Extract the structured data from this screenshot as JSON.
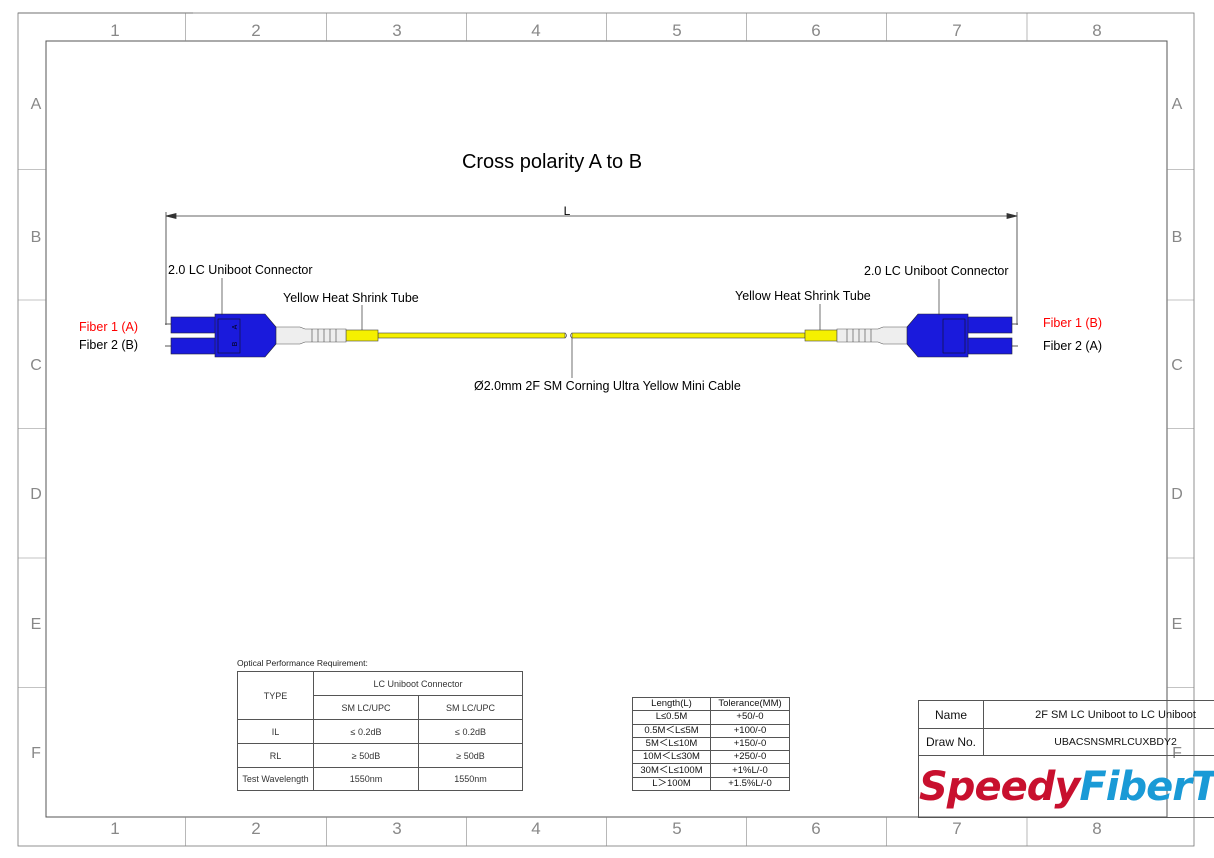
{
  "grid": {
    "columns": [
      "1",
      "2",
      "3",
      "4",
      "5",
      "6",
      "7",
      "8"
    ],
    "rows": [
      "A",
      "B",
      "C",
      "D",
      "E",
      "F"
    ]
  },
  "title": "Cross polarity A to B",
  "dimension_label": "L",
  "labels": {
    "left_connector": "2.0 LC Uniboot Connector",
    "right_connector": "2.0 LC Uniboot Connector",
    "left_heat_shrink": "Yellow Heat Shrink Tube",
    "right_heat_shrink": "Yellow Heat Shrink Tube",
    "cable": "Ø2.0mm 2F SM Corning Ultra Yellow Mini Cable",
    "left_fiber1": "Fiber 1 (A)",
    "left_fiber2": "Fiber 2 (B)",
    "right_fiber1": "Fiber 1 (B)",
    "right_fiber2": "Fiber 2 (A)",
    "connector_marks": [
      "A",
      "B"
    ]
  },
  "colors": {
    "connector": "#1a1adc",
    "cable": "#f5f000",
    "boot": "#e8e8e8",
    "fiber1_label": "#ff0000",
    "logo_red": "#c8102e",
    "logo_blue": "#1a9ad6"
  },
  "optical": {
    "caption": "Optical Performance Requirement:",
    "type_header": "TYPE",
    "group_header": "LC Uniboot Connector",
    "sub_headers": [
      "SM LC/UPC",
      "SM LC/UPC"
    ],
    "rows": [
      {
        "label": "IL",
        "values": [
          "≤ 0.2dB",
          "≤ 0.2dB"
        ]
      },
      {
        "label": "RL",
        "values": [
          "≥ 50dB",
          "≥ 50dB"
        ]
      },
      {
        "label": "Test Wavelength",
        "values": [
          "1550nm",
          "1550nm"
        ]
      }
    ]
  },
  "tolerance": {
    "headers": [
      "Length(L)",
      "Tolerance(MM)"
    ],
    "rows": [
      [
        "L≤0.5M",
        "+50/-0"
      ],
      [
        "0.5M＜L≤5M",
        "+100/-0"
      ],
      [
        "5M＜L≤10M",
        "+150/-0"
      ],
      [
        "10M＜L≤30M",
        "+250/-0"
      ],
      [
        "30M＜L≤100M",
        "+1%L/-0"
      ],
      [
        "L＞100M",
        "+1.5%L/-0"
      ]
    ]
  },
  "title_block": {
    "name_label": "Name",
    "name_value": "2F SM LC Uniboot to LC Uniboot",
    "drawno_label": "Draw No.",
    "drawno_value": "UBACSNSMRLCUXBDY2",
    "logo_part1": "Speedy",
    "logo_part2": "FiberTX"
  }
}
